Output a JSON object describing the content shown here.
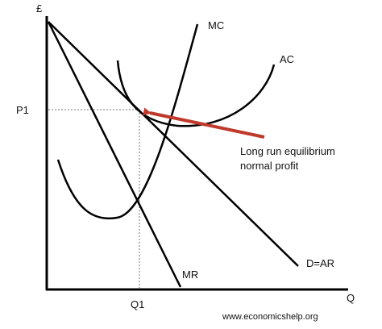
{
  "axes": {
    "y_label": "£",
    "x_label": "Q"
  },
  "markers": {
    "price": "P1",
    "quantity": "Q1"
  },
  "curves": {
    "mc": "MC",
    "ac": "AC",
    "mr": "MR",
    "demand": "D=AR"
  },
  "annotation": {
    "line1": "Long run equilibrium",
    "line2": "normal profit"
  },
  "credit": "www.economicshelp.org",
  "colors": {
    "curve": "#000000",
    "guide": "#777777",
    "arrow": "#c0392b"
  }
}
